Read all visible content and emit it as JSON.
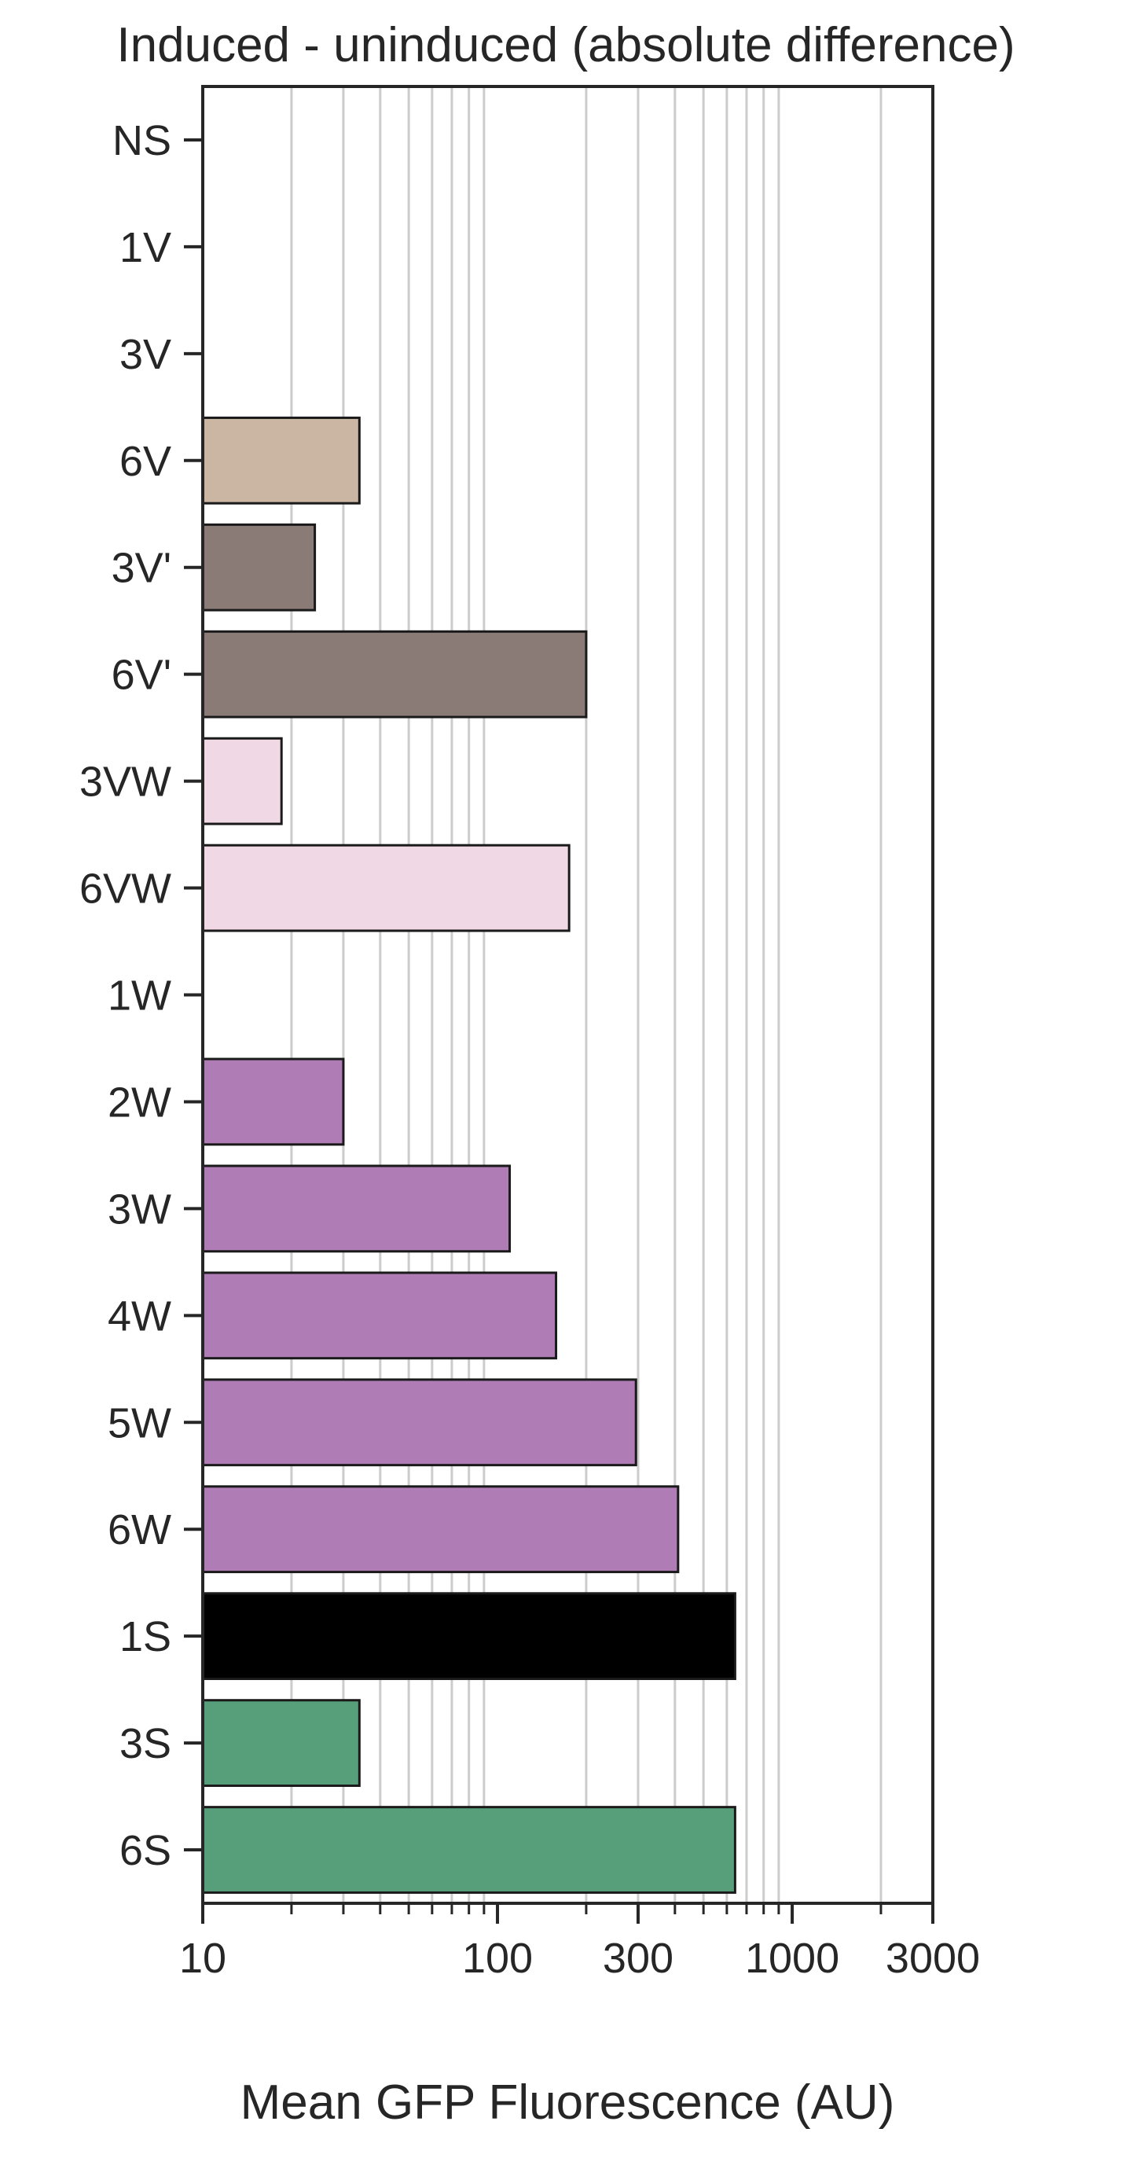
{
  "chart_data": {
    "type": "bar",
    "orientation": "horizontal",
    "title": "Induced - uninduced (absolute difference)",
    "xlabel": "Mean GFP Fluorescence (AU)",
    "ylabel": "",
    "x_scale": "log",
    "xlim": [
      10,
      3000
    ],
    "x_ticks": [
      10,
      100,
      300,
      1000,
      3000
    ],
    "x_tick_labels": [
      "10",
      "100",
      "300",
      "1000",
      "3000"
    ],
    "grid": "vertical",
    "categories": [
      "NS",
      "1V",
      "3V",
      "6V",
      "3V'",
      "6V'",
      "3VW",
      "6VW",
      "1W",
      "2W",
      "3W",
      "4W",
      "5W",
      "6W",
      "1S",
      "3S",
      "6S"
    ],
    "values": [
      null,
      null,
      null,
      34,
      24,
      200,
      18.5,
      175,
      null,
      30,
      110,
      158,
      295,
      410,
      640,
      34,
      640
    ],
    "colors": [
      "",
      "",
      "",
      "#cbb6a4",
      "#8a7b76",
      "#8a7b76",
      "#f0d9e5",
      "#f0d9e5",
      "",
      "#b07cb6",
      "#b07cb6",
      "#b07cb6",
      "#b07cb6",
      "#b07cb6",
      "",
      "#579f7b",
      "#579f7b"
    ]
  }
}
